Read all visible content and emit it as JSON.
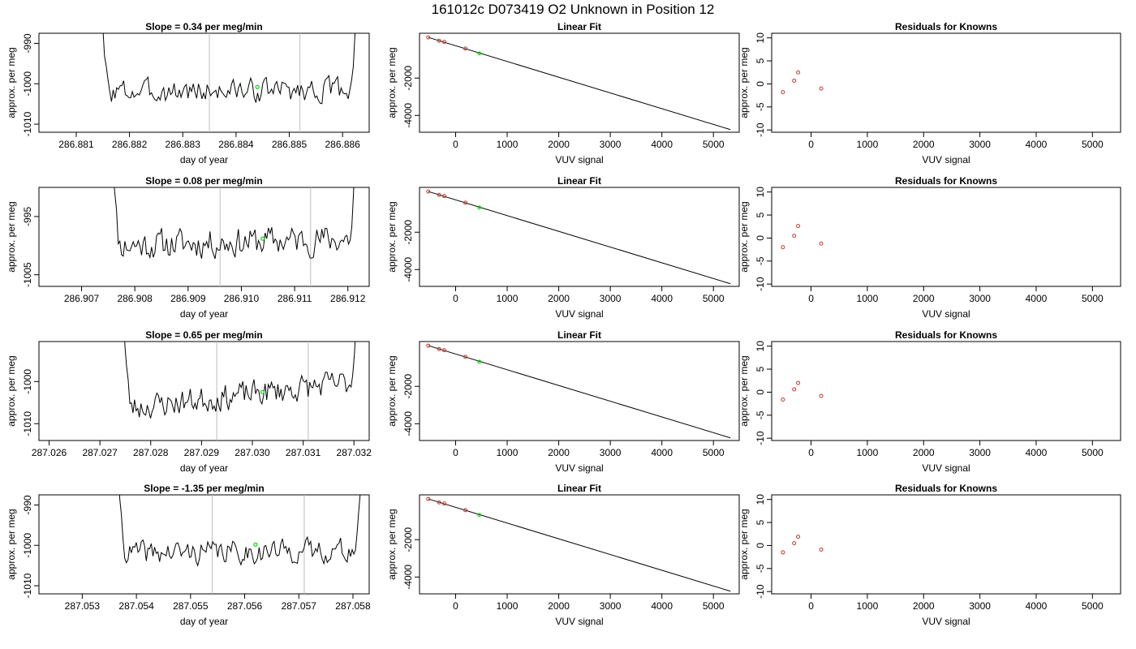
{
  "page": {
    "title": "161012c      D073419   O2 Unknown in Position  12"
  },
  "chart_data": [
    {
      "row": 1,
      "panel": "trace",
      "type": "line",
      "title": "Slope =  0.34  per meg/min",
      "xlabel": "day of year",
      "ylabel": "approx. per meg",
      "xlim": [
        286.8803,
        286.8865
      ],
      "ylim": [
        -1012,
        -987.5
      ],
      "xticks": [
        286.881,
        286.882,
        286.883,
        286.884,
        286.885,
        286.886
      ],
      "xtick_labels": [
        "286.881",
        "286.882",
        "286.883",
        "286.884",
        "286.885",
        "286.886"
      ],
      "yticks": [
        -1010,
        -1000,
        -990
      ],
      "ytick_labels": [
        "-1010",
        "-1000",
        "-990"
      ],
      "x_start": 286.8814,
      "x_end": 286.8863,
      "vlines": [
        286.8835,
        286.8852
      ],
      "baseline": -1002,
      "trend": 0.6,
      "wiggle": 2.6,
      "seed": 3,
      "highlight": {
        "x": 286.8844,
        "y": -1000.8
      },
      "grid": false
    },
    {
      "row": 1,
      "panel": "fit",
      "type": "scatter",
      "title": "Linear Fit",
      "xlabel": "VUV signal",
      "ylabel": "approx. per meg",
      "xlim": [
        -700,
        5500
      ],
      "ylim": [
        -4900,
        400
      ],
      "xticks": [
        0,
        1000,
        2000,
        3000,
        4000,
        5000
      ],
      "xtick_labels": [
        "0",
        "1000",
        "2000",
        "3000",
        "4000",
        "5000"
      ],
      "yticks": [
        -4000,
        -2000
      ],
      "ytick_labels": [
        "-4000",
        "-2000"
      ],
      "points": [
        {
          "x": -530,
          "y": 180
        },
        {
          "x": -320,
          "y": 0
        },
        {
          "x": -220,
          "y": -60
        },
        {
          "x": 190,
          "y": -420
        }
      ],
      "unknown": {
        "x": 460,
        "y": -680
      },
      "line": [
        {
          "x": -530,
          "y": 180
        },
        {
          "x": 5330,
          "y": -4760
        }
      ],
      "grid": false
    },
    {
      "row": 1,
      "panel": "resid",
      "type": "scatter",
      "title": "Residuals for Knowns",
      "xlabel": "VUV signal",
      "ylabel": "approx. per meg",
      "xlim": [
        -700,
        5500
      ],
      "ylim": [
        -10.5,
        11
      ],
      "xticks": [
        0,
        1000,
        2000,
        3000,
        4000,
        5000
      ],
      "xtick_labels": [
        "0",
        "1000",
        "2000",
        "3000",
        "4000",
        "5000"
      ],
      "yticks": [
        -10,
        -5,
        0,
        5,
        10
      ],
      "ytick_labels": [
        "-10",
        "-5",
        "0",
        "5",
        "10"
      ],
      "points": [
        {
          "x": -500,
          "y": -1.8
        },
        {
          "x": -300,
          "y": 0.7
        },
        {
          "x": -230,
          "y": 2.5
        },
        {
          "x": 180,
          "y": -1.0
        }
      ],
      "grid": false
    },
    {
      "row": 2,
      "panel": "trace",
      "type": "line",
      "title": "Slope =  0.08  per meg/min",
      "xlabel": "day of year",
      "ylabel": "approx. per meg",
      "xlim": [
        286.9062,
        286.9124
      ],
      "ylim": [
        -1007,
        -990
      ],
      "xticks": [
        286.907,
        286.908,
        286.909,
        286.91,
        286.911,
        286.912
      ],
      "xtick_labels": [
        "286.907",
        "286.908",
        "286.909",
        "286.910",
        "286.911",
        "286.912"
      ],
      "yticks": [
        -1005,
        -995
      ],
      "ytick_labels": [
        "-1005",
        "-995"
      ],
      "x_start": 286.9075,
      "x_end": 286.9122,
      "vlines": [
        286.9096,
        286.9113
      ],
      "baseline": -1000,
      "trend": 1.2,
      "wiggle": 2.3,
      "seed": 11,
      "highlight": {
        "x": 286.9104,
        "y": -998.8
      },
      "grid": false
    },
    {
      "row": 2,
      "panel": "fit",
      "type": "scatter",
      "title": "Linear Fit",
      "xlabel": "VUV signal",
      "ylabel": "approx. per meg",
      "xlim": [
        -700,
        5500
      ],
      "ylim": [
        -4900,
        400
      ],
      "xticks": [
        0,
        1000,
        2000,
        3000,
        4000,
        5000
      ],
      "xtick_labels": [
        "0",
        "1000",
        "2000",
        "3000",
        "4000",
        "5000"
      ],
      "yticks": [
        -4000,
        -2000
      ],
      "ytick_labels": [
        "-4000",
        "-2000"
      ],
      "points": [
        {
          "x": -530,
          "y": 180
        },
        {
          "x": -320,
          "y": 0
        },
        {
          "x": -220,
          "y": -60
        },
        {
          "x": 190,
          "y": -420
        }
      ],
      "unknown": {
        "x": 460,
        "y": -680
      },
      "line": [
        {
          "x": -530,
          "y": 180
        },
        {
          "x": 5330,
          "y": -4760
        }
      ],
      "grid": false
    },
    {
      "row": 2,
      "panel": "resid",
      "type": "scatter",
      "title": "Residuals for Knowns",
      "xlabel": "VUV signal",
      "ylabel": "approx. per meg",
      "xlim": [
        -700,
        5500
      ],
      "ylim": [
        -10.5,
        11
      ],
      "xticks": [
        0,
        1000,
        2000,
        3000,
        4000,
        5000
      ],
      "xtick_labels": [
        "0",
        "1000",
        "2000",
        "3000",
        "4000",
        "5000"
      ],
      "yticks": [
        -10,
        -5,
        0,
        5,
        10
      ],
      "ytick_labels": [
        "-10",
        "-5",
        "0",
        "5",
        "10"
      ],
      "points": [
        {
          "x": -500,
          "y": -2.0
        },
        {
          "x": -300,
          "y": 0.5
        },
        {
          "x": -230,
          "y": 2.6
        },
        {
          "x": 180,
          "y": -1.2
        }
      ],
      "grid": false
    },
    {
      "row": 3,
      "panel": "trace",
      "type": "line",
      "title": "Slope =  0.65  per meg/min",
      "xlabel": "day of year",
      "ylabel": "approx. per meg",
      "xlim": [
        287.0258,
        287.0323
      ],
      "ylim": [
        -1014,
        -990.5
      ],
      "xticks": [
        287.026,
        287.027,
        287.028,
        287.029,
        287.03,
        287.031,
        287.032
      ],
      "xtick_labels": [
        "287.026",
        "287.027",
        "287.028",
        "287.029",
        "287.030",
        "287.031",
        "287.032"
      ],
      "yticks": [
        -1010,
        -1000
      ],
      "ytick_labels": [
        "-1010",
        "-1000"
      ],
      "x_start": 287.0274,
      "x_end": 287.0321,
      "vlines": [
        287.0293,
        287.0311
      ],
      "baseline": -1006.5,
      "trend": 6.5,
      "wiggle": 2.8,
      "seed": 23,
      "highlight": {
        "x": 287.0302,
        "y": -1002.5
      },
      "grid": false
    },
    {
      "row": 3,
      "panel": "fit",
      "type": "scatter",
      "title": "Linear Fit",
      "xlabel": "VUV signal",
      "ylabel": "approx. per meg",
      "xlim": [
        -700,
        5500
      ],
      "ylim": [
        -4900,
        400
      ],
      "xticks": [
        0,
        1000,
        2000,
        3000,
        4000,
        5000
      ],
      "xtick_labels": [
        "0",
        "1000",
        "2000",
        "3000",
        "4000",
        "5000"
      ],
      "yticks": [
        -4000,
        -2000
      ],
      "ytick_labels": [
        "-4000",
        "-2000"
      ],
      "points": [
        {
          "x": -530,
          "y": 180
        },
        {
          "x": -320,
          "y": 0
        },
        {
          "x": -220,
          "y": -60
        },
        {
          "x": 190,
          "y": -420
        }
      ],
      "unknown": {
        "x": 460,
        "y": -680
      },
      "line": [
        {
          "x": -530,
          "y": 180
        },
        {
          "x": 5330,
          "y": -4760
        }
      ],
      "grid": false
    },
    {
      "row": 3,
      "panel": "resid",
      "type": "scatter",
      "title": "Residuals for Knowns",
      "xlabel": "VUV signal",
      "ylabel": "approx. per meg",
      "xlim": [
        -700,
        5500
      ],
      "ylim": [
        -10.5,
        11
      ],
      "xticks": [
        0,
        1000,
        2000,
        3000,
        4000,
        5000
      ],
      "xtick_labels": [
        "0",
        "1000",
        "2000",
        "3000",
        "4000",
        "5000"
      ],
      "yticks": [
        -10,
        -5,
        0,
        5,
        10
      ],
      "ytick_labels": [
        "-10",
        "-5",
        "0",
        "5",
        "10"
      ],
      "points": [
        {
          "x": -500,
          "y": -1.6
        },
        {
          "x": -300,
          "y": 0.6
        },
        {
          "x": -230,
          "y": 2.0
        },
        {
          "x": 180,
          "y": -0.8
        }
      ],
      "grid": false
    },
    {
      "row": 4,
      "panel": "trace",
      "type": "line",
      "title": "Slope =  -1.35  per meg/min",
      "xlabel": "day of year",
      "ylabel": "approx. per meg",
      "xlim": [
        287.0522,
        287.0583
      ],
      "ylim": [
        -1012,
        -987.5
      ],
      "xticks": [
        287.053,
        287.054,
        287.055,
        287.056,
        287.057,
        287.058
      ],
      "xtick_labels": [
        "287.053",
        "287.054",
        "287.055",
        "287.056",
        "287.057",
        "287.058"
      ],
      "yticks": [
        -1010,
        -1000,
        -990
      ],
      "ytick_labels": [
        "-1010",
        "-1000",
        "-990"
      ],
      "x_start": 287.0536,
      "x_end": 287.0582,
      "vlines": [
        287.0554,
        287.0571
      ],
      "baseline": -1002,
      "trend": 0.8,
      "wiggle": 2.6,
      "seed": 41,
      "highlight": {
        "x": 287.0562,
        "y": -999.8
      },
      "grid": false
    },
    {
      "row": 4,
      "panel": "fit",
      "type": "scatter",
      "title": "Linear Fit",
      "xlabel": "VUV signal",
      "ylabel": "approx. per meg",
      "xlim": [
        -700,
        5500
      ],
      "ylim": [
        -4900,
        400
      ],
      "xticks": [
        0,
        1000,
        2000,
        3000,
        4000,
        5000
      ],
      "xtick_labels": [
        "0",
        "1000",
        "2000",
        "3000",
        "4000",
        "5000"
      ],
      "yticks": [
        -4000,
        -2000
      ],
      "ytick_labels": [
        "-4000",
        "-2000"
      ],
      "points": [
        {
          "x": -530,
          "y": 180
        },
        {
          "x": -320,
          "y": 0
        },
        {
          "x": -220,
          "y": -60
        },
        {
          "x": 190,
          "y": -420
        }
      ],
      "unknown": {
        "x": 460,
        "y": -680
      },
      "line": [
        {
          "x": -530,
          "y": 180
        },
        {
          "x": 5330,
          "y": -4760
        }
      ],
      "grid": false
    },
    {
      "row": 4,
      "panel": "resid",
      "type": "scatter",
      "title": "Residuals for Knowns",
      "xlabel": "VUV signal",
      "ylabel": "approx. per meg",
      "xlim": [
        -700,
        5500
      ],
      "ylim": [
        -10.5,
        11
      ],
      "xticks": [
        0,
        1000,
        2000,
        3000,
        4000,
        5000
      ],
      "xtick_labels": [
        "0",
        "1000",
        "2000",
        "3000",
        "4000",
        "5000"
      ],
      "yticks": [
        -10,
        -5,
        0,
        5,
        10
      ],
      "ytick_labels": [
        "-10",
        "-5",
        "0",
        "5",
        "10"
      ],
      "points": [
        {
          "x": -500,
          "y": -1.5
        },
        {
          "x": -300,
          "y": 0.5
        },
        {
          "x": -230,
          "y": 1.9
        },
        {
          "x": 180,
          "y": -0.9
        }
      ],
      "grid": false
    }
  ],
  "colors": {
    "trace": "#000000",
    "vline": "#bebebe",
    "known_point": "#c0392b",
    "unknown_point": "#00dd00",
    "axis": "#000000"
  }
}
